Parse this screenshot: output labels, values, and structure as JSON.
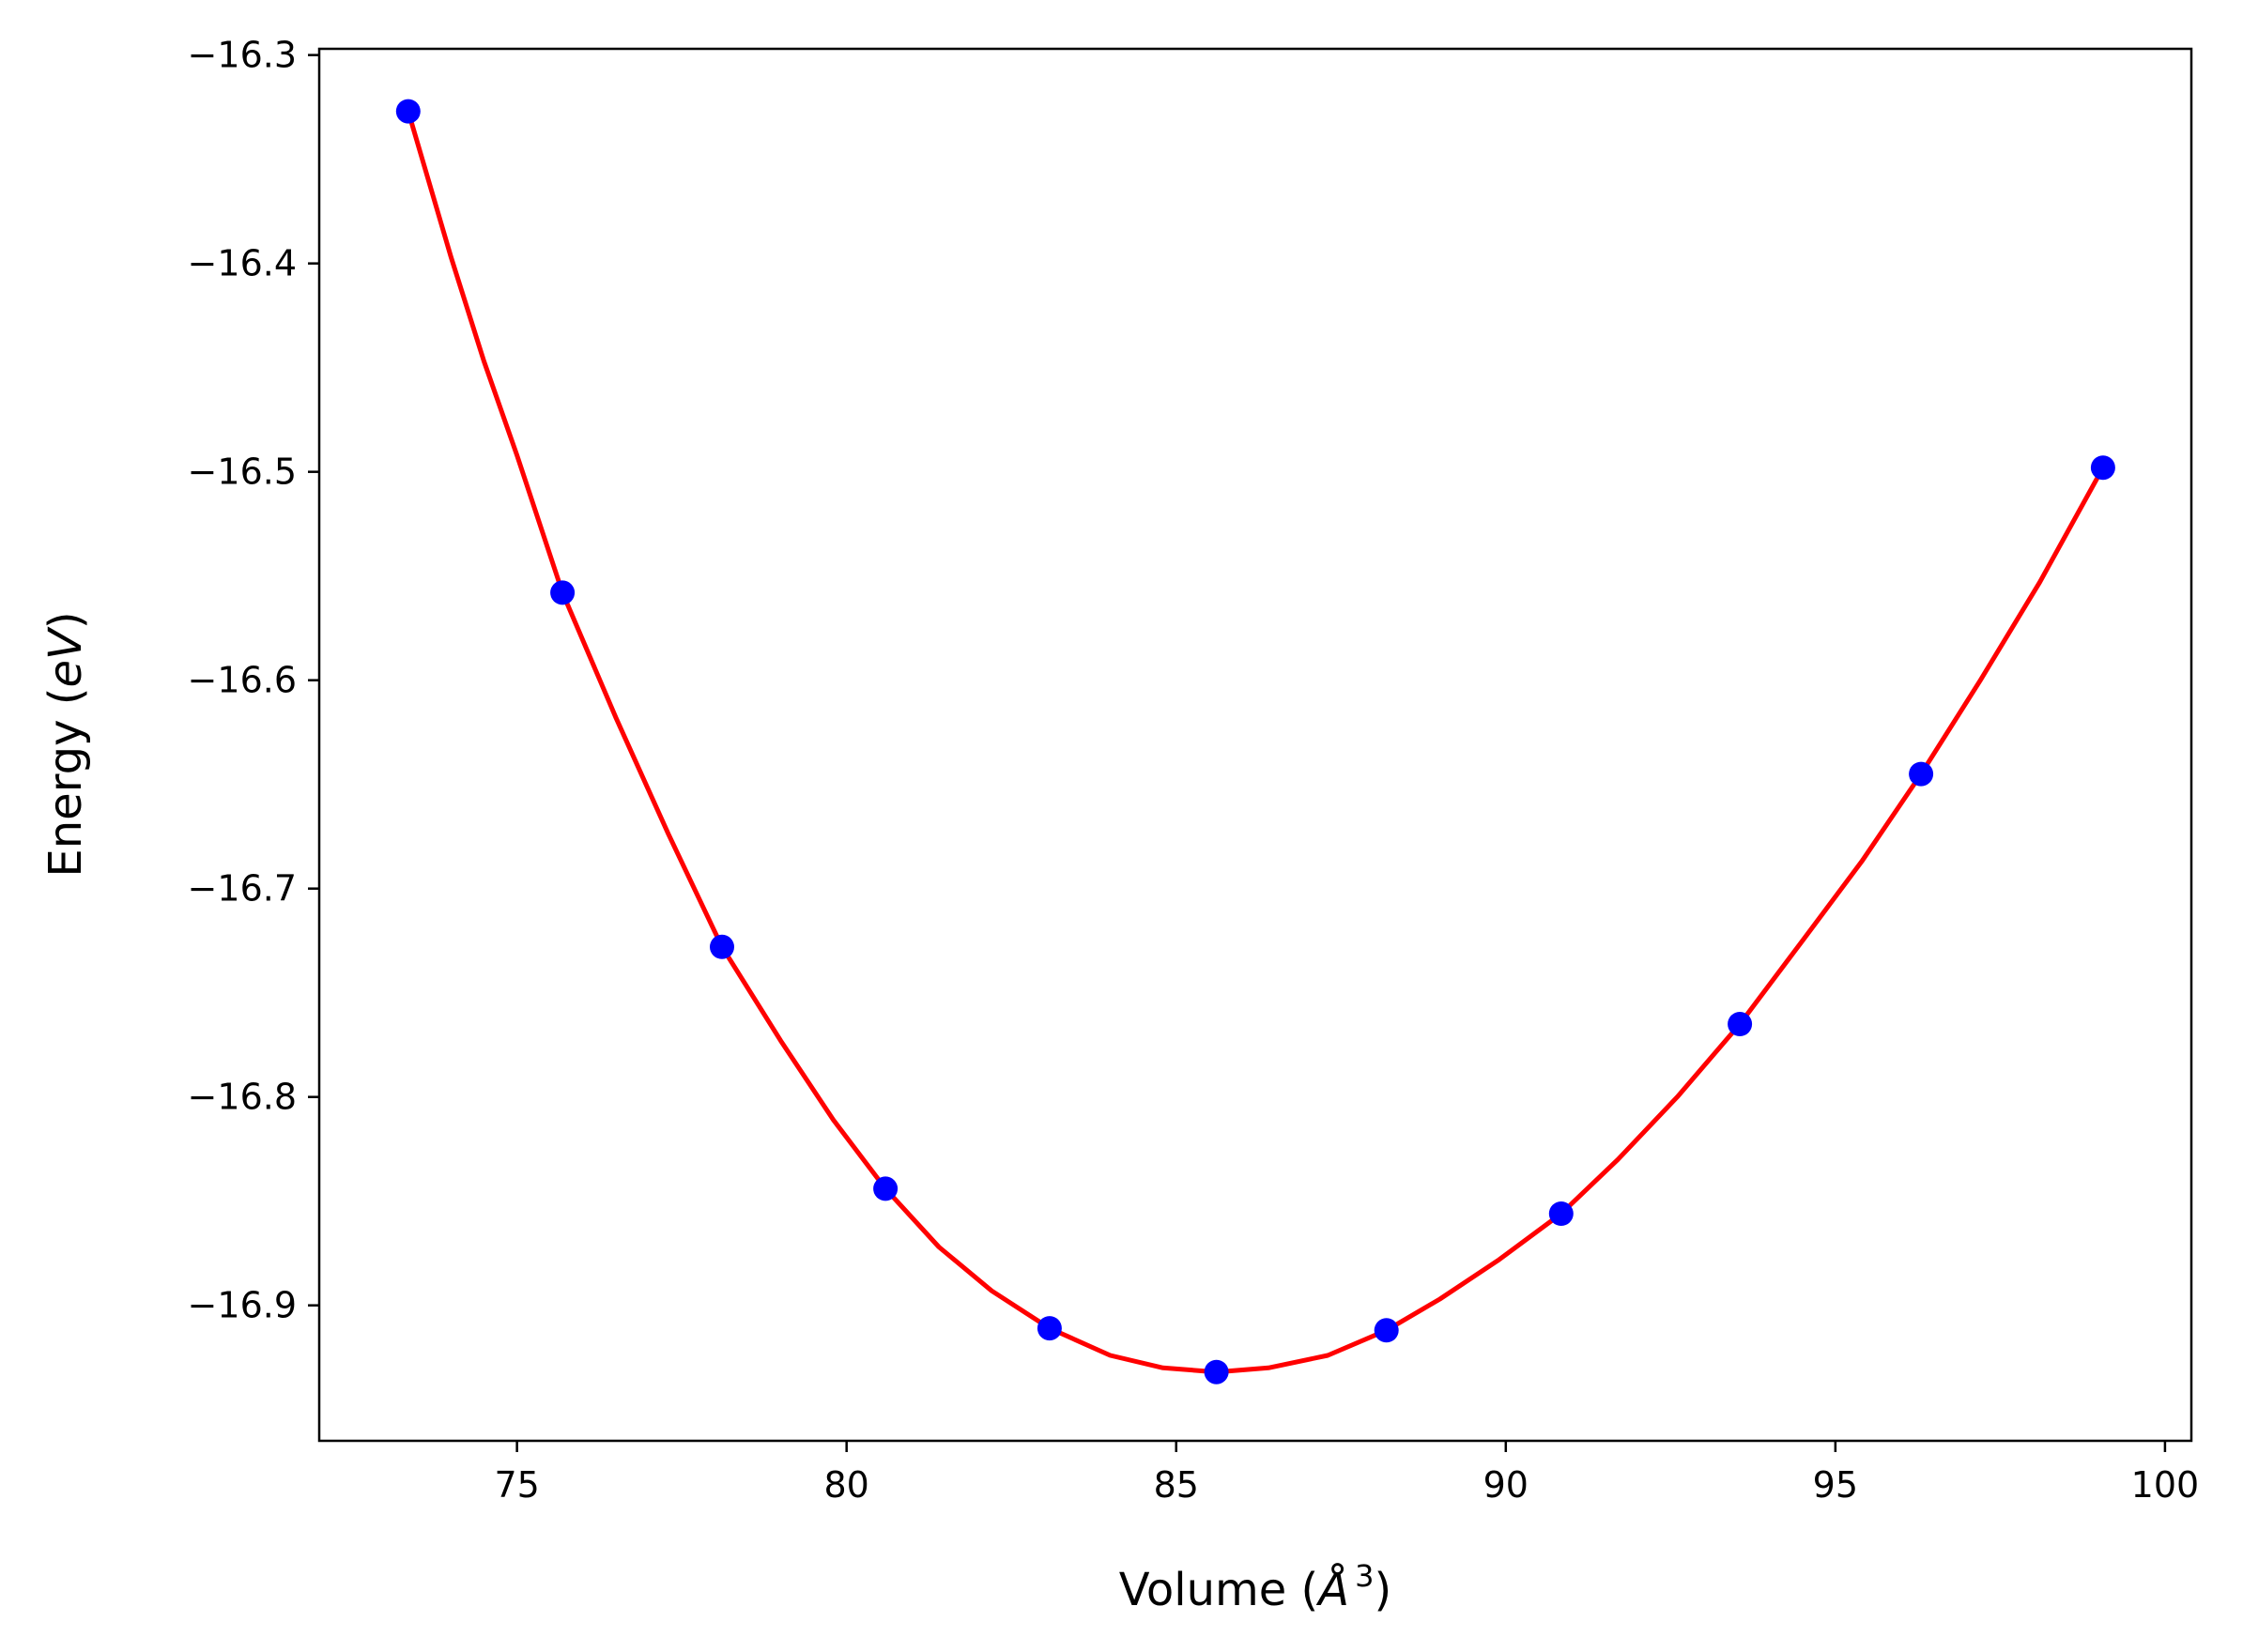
{
  "chart_data": {
    "type": "scatter",
    "title": "",
    "xlabel": {
      "prefix": "Volume (",
      "unit": "Å",
      "sup": "3",
      "suffix": ")"
    },
    "ylabel": {
      "prefix": "Energy (",
      "unit": "eV",
      "suffix": ")"
    },
    "xlim": [
      72.0,
      100.4
    ],
    "ylim": [
      -16.965,
      -16.297
    ],
    "xticks": [
      75,
      80,
      85,
      90,
      95,
      100
    ],
    "xtick_labels": [
      "75",
      "80",
      "85",
      "90",
      "95",
      "100"
    ],
    "yticks": [
      -16.3,
      -16.4,
      -16.5,
      -16.6,
      -16.7,
      -16.8,
      -16.9
    ],
    "ytick_labels": [
      "−16.3",
      "−16.4",
      "−16.5",
      "−16.6",
      "−16.7",
      "−16.8",
      "−16.9"
    ],
    "grid": false,
    "series": [
      {
        "kind": "points",
        "color": "#0000ff",
        "x": [
          73.35,
          75.69,
          78.11,
          80.59,
          83.08,
          85.61,
          88.19,
          90.84,
          93.55,
          96.3,
          99.06
        ],
        "y": [
          -16.327,
          -16.558,
          -16.728,
          -16.844,
          -16.911,
          -16.932,
          -16.912,
          -16.856,
          -16.765,
          -16.645,
          -16.498
        ]
      },
      {
        "kind": "fit-line",
        "color": "#ff0000",
        "x": [
          73.35,
          74.0,
          74.5,
          75.0,
          75.69,
          76.5,
          77.3,
          78.11,
          79.0,
          79.8,
          80.59,
          81.4,
          82.2,
          83.08,
          84.0,
          84.8,
          85.61,
          86.4,
          87.3,
          88.19,
          89.0,
          89.9,
          90.84,
          91.7,
          92.6,
          93.55,
          94.5,
          95.4,
          96.3,
          97.2,
          98.1,
          99.06
        ],
        "y": [
          -16.327,
          -16.397,
          -16.447,
          -16.492,
          -16.558,
          -16.618,
          -16.674,
          -16.728,
          -16.773,
          -16.811,
          -16.844,
          -16.872,
          -16.893,
          -16.911,
          -16.924,
          -16.93,
          -16.932,
          -16.93,
          -16.924,
          -16.912,
          -16.897,
          -16.878,
          -16.856,
          -16.83,
          -16.8,
          -16.765,
          -16.725,
          -16.687,
          -16.645,
          -16.6,
          -16.553,
          -16.498
        ]
      }
    ]
  }
}
